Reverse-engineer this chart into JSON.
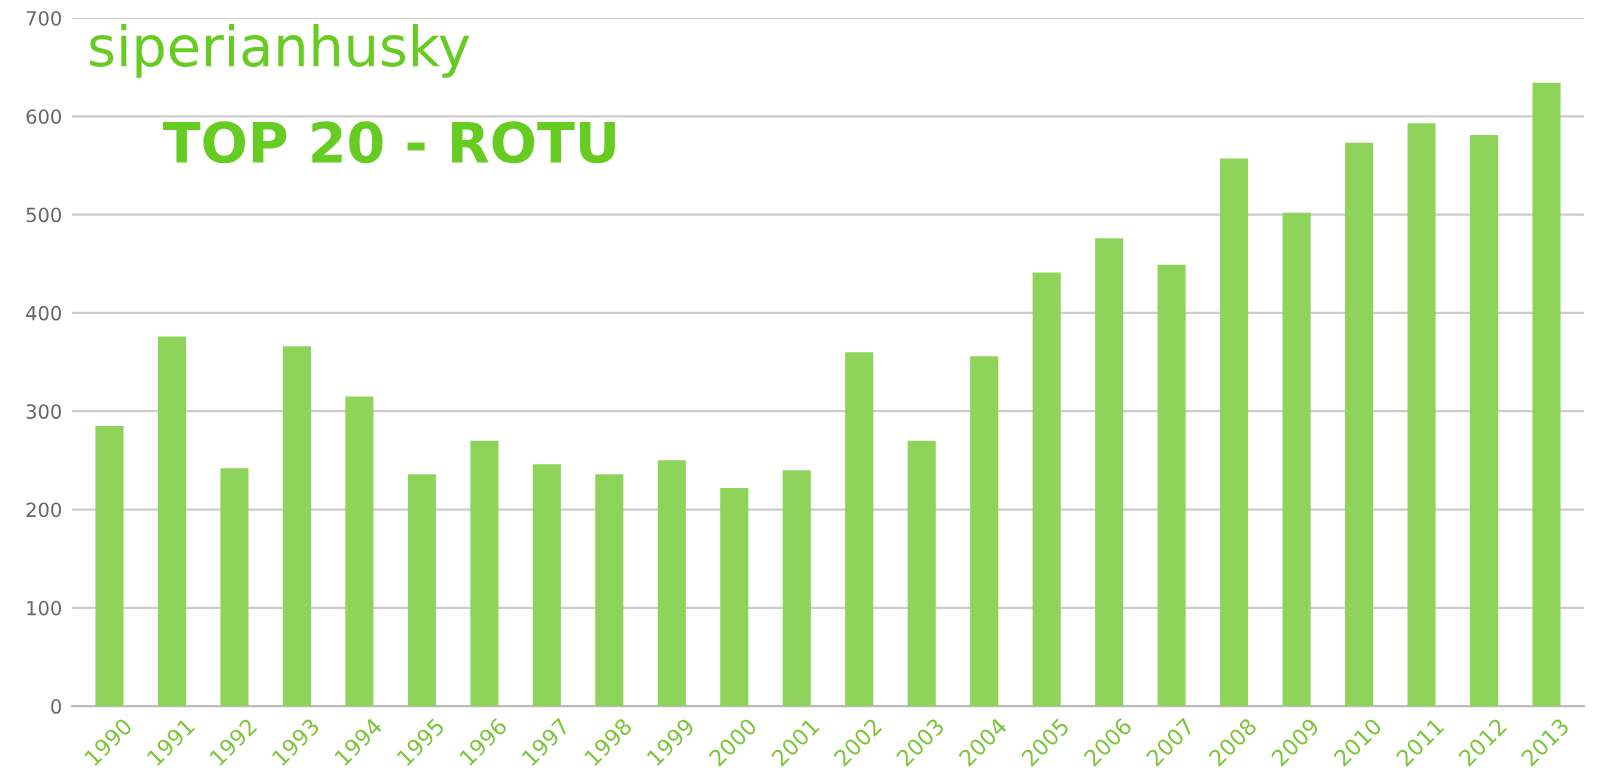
{
  "chart_data": {
    "type": "bar",
    "title": "siperianhusky",
    "subtitle": "TOP 20 - ROTU",
    "categories": [
      "1990",
      "1991",
      "1992",
      "1993",
      "1994",
      "1995",
      "1996",
      "1997",
      "1998",
      "1999",
      "2000",
      "2001",
      "2002",
      "2003",
      "2004",
      "2005",
      "2006",
      "2007",
      "2008",
      "2009",
      "2010",
      "2011",
      "2012",
      "2013"
    ],
    "values": [
      285,
      376,
      242,
      366,
      315,
      236,
      270,
      246,
      236,
      250,
      222,
      240,
      360,
      270,
      356,
      441,
      476,
      449,
      557,
      502,
      573,
      593,
      581,
      634
    ],
    "color": "#8fd45a",
    "ylim": [
      0,
      700
    ],
    "yticks": [
      0,
      100,
      200,
      300,
      400,
      500,
      600,
      700
    ],
    "grid": "y"
  }
}
